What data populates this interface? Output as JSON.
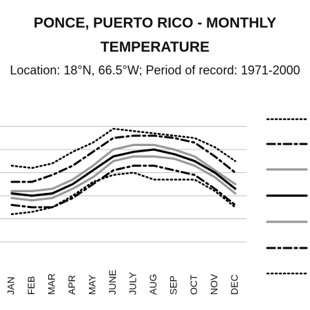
{
  "chart_data": {
    "type": "line",
    "title_line1": "PONCE, PUERTO RICO - MONTHLY",
    "title_line2": "TEMPERATURE",
    "subtitle": "Location: 18°N, 66.5°W; Period of record: 1971-2000",
    "categories": [
      "JAN",
      "FEB",
      "MAR",
      "APR",
      "MAY",
      "JUNE",
      "JULY",
      "AUG",
      "SEP",
      "OCT",
      "NOV",
      "DEC"
    ],
    "series": [
      {
        "style": "dotted",
        "color": "#000000",
        "values": [
          91.5,
          91.0,
          92.0,
          94.5,
          96.5,
          99.5,
          99.0,
          98.5,
          98.0,
          97.5,
          95.5,
          92.5
        ]
      },
      {
        "style": "dashdot",
        "color": "#000000",
        "values": [
          88.0,
          88.0,
          89.5,
          91.5,
          94.5,
          97.5,
          98.0,
          98.0,
          97.5,
          96.5,
          93.5,
          90.0
        ]
      },
      {
        "style": "solid",
        "color": "#999999",
        "values": [
          86.0,
          86.0,
          86.5,
          88.5,
          91.5,
          95.0,
          96.0,
          96.0,
          95.0,
          93.5,
          90.5,
          87.5
        ]
      },
      {
        "style": "solid",
        "color": "#000000",
        "values": [
          85.5,
          85.0,
          85.5,
          87.5,
          90.5,
          93.5,
          94.5,
          95.0,
          94.0,
          92.5,
          90.0,
          86.5
        ]
      },
      {
        "style": "solid",
        "color": "#999999",
        "values": [
          84.5,
          84.0,
          84.5,
          86.5,
          89.0,
          92.5,
          93.5,
          93.5,
          93.0,
          91.5,
          89.0,
          85.5
        ]
      },
      {
        "style": "dashdot",
        "color": "#000000",
        "values": [
          83.0,
          82.5,
          82.5,
          84.5,
          87.5,
          90.5,
          91.5,
          91.5,
          90.5,
          89.5,
          86.5,
          83.0
        ]
      },
      {
        "style": "dotted",
        "color": "#000000",
        "values": [
          81.0,
          81.5,
          82.5,
          85.0,
          88.0,
          89.5,
          90.0,
          88.5,
          88.5,
          88.5,
          86.0,
          82.5
        ]
      }
    ],
    "ylim": [
      71,
      105
    ],
    "ygrid": [
      75,
      80,
      85,
      90,
      95,
      100
    ],
    "grid": true,
    "legend": "right"
  }
}
